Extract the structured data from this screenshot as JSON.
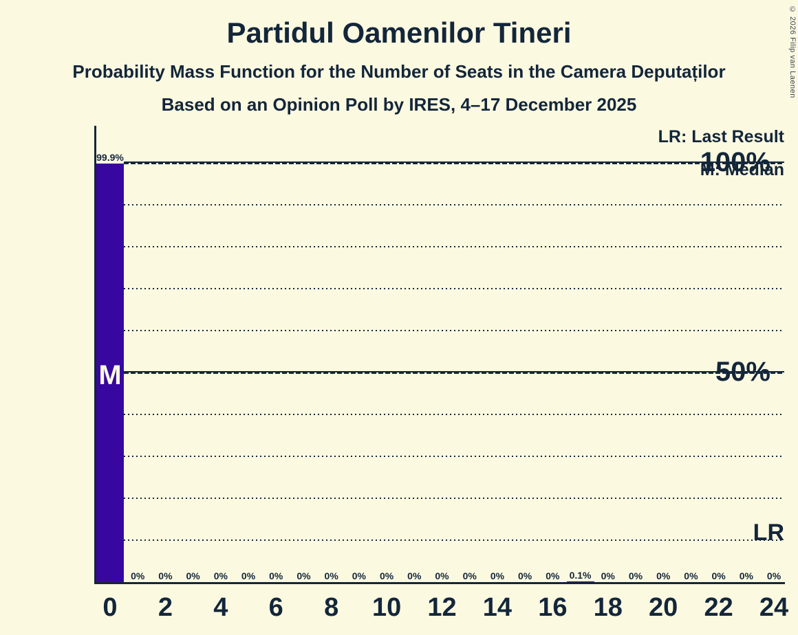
{
  "colors": {
    "background": "#FCF9E1",
    "bar": "#3707A0",
    "text": "#13263A"
  },
  "chart_data": {
    "type": "bar",
    "title": "Partidul Oamenilor Tineri",
    "subtitle": "Probability Mass Function for the Number of Seats in the Camera Deputaților",
    "poll_line": "Based on an Opinion Poll by IRES, 4–17 December 2025",
    "copyright": "© 2026 Filip van Laenen",
    "seats": [
      0,
      1,
      2,
      3,
      4,
      5,
      6,
      7,
      8,
      9,
      10,
      11,
      12,
      13,
      14,
      15,
      16,
      17,
      18,
      19,
      20,
      21,
      22,
      23,
      24
    ],
    "values": [
      99.9,
      0,
      0,
      0,
      0,
      0,
      0,
      0,
      0,
      0,
      0,
      0,
      0,
      0,
      0,
      0,
      0,
      0.1,
      0,
      0,
      0,
      0,
      0,
      0,
      0
    ],
    "value_labels": [
      "99.9%",
      "0%",
      "0%",
      "0%",
      "0%",
      "0%",
      "0%",
      "0%",
      "0%",
      "0%",
      "0%",
      "0%",
      "0%",
      "0%",
      "0%",
      "0%",
      "0%",
      "0.1%",
      "0%",
      "0%",
      "0%",
      "0%",
      "0%",
      "0%",
      "0%"
    ],
    "x_tick_labels": [
      "0",
      "2",
      "4",
      "6",
      "8",
      "10",
      "12",
      "14",
      "16",
      "18",
      "20",
      "22",
      "24"
    ],
    "y_tick_labels": [
      "100%",
      "50%"
    ],
    "ylim": [
      0,
      100
    ],
    "grid": {
      "minor_pct": [
        90,
        80,
        70,
        60,
        40,
        30,
        20,
        10
      ],
      "major_pct": [
        100,
        50
      ]
    },
    "legend": {
      "lr": "LR: Last Result",
      "m": "M: Median"
    },
    "median_seat": 0,
    "median_marker": "M",
    "last_result_marker": "LR"
  }
}
